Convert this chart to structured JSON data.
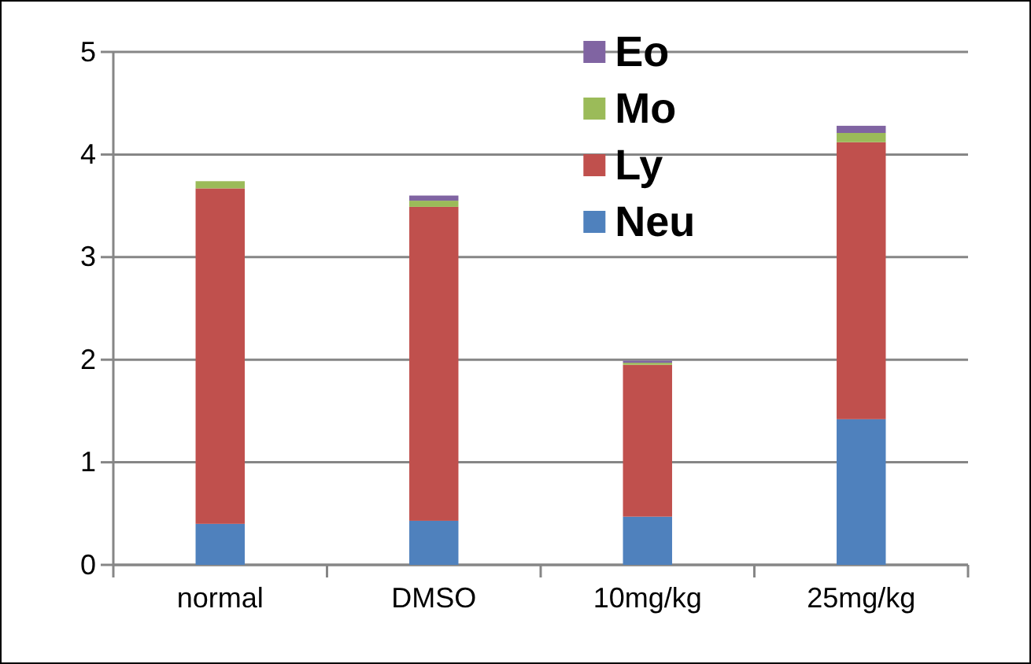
{
  "chart_data": {
    "type": "bar",
    "stacked": true,
    "categories": [
      "normal",
      "DMSO",
      "10mg/kg",
      "25mg/kg"
    ],
    "series": [
      {
        "name": "Neu",
        "color": "#4f81bd",
        "values": [
          0.4,
          0.43,
          0.47,
          1.42
        ]
      },
      {
        "name": "Ly",
        "color": "#c0504d",
        "values": [
          3.27,
          3.06,
          1.48,
          2.7
        ]
      },
      {
        "name": "Mo",
        "color": "#9bbb59",
        "values": [
          0.07,
          0.06,
          0.02,
          0.09
        ]
      },
      {
        "name": "Eo",
        "color": "#8064a2",
        "values": [
          0.0,
          0.05,
          0.02,
          0.07
        ]
      }
    ],
    "ylim": [
      0,
      5
    ],
    "yticks": [
      0,
      1,
      2,
      3,
      4,
      5
    ],
    "grid": "y",
    "legend": "top right"
  }
}
